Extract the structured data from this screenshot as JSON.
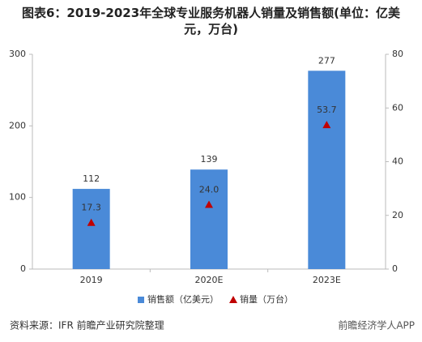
{
  "chart_data": {
    "type": "bar",
    "title": "图表6：2019-2023年全球专业服务机器人销量及销售额(单位：亿美元，万台)",
    "categories": [
      "2019",
      "2020E",
      "2023E"
    ],
    "series": [
      {
        "name": "销售额（亿美元）",
        "type": "bar",
        "color": "#4a8ad8",
        "values": [
          112,
          139,
          277
        ]
      },
      {
        "name": "销量（万台）",
        "type": "marker",
        "color": "#c00000",
        "axis": "y2",
        "values": [
          17.3,
          24.0,
          53.7
        ],
        "value_labels": [
          "17.3",
          "24.0",
          "53.7"
        ]
      }
    ],
    "ylim": [
      0,
      300
    ],
    "yticks": [
      0,
      100,
      200,
      300
    ],
    "y2lim": [
      0,
      80
    ],
    "y2ticks": [
      0,
      20,
      40,
      60,
      80
    ],
    "legend": "bottom",
    "source": "资料来源：IFR 前瞻产业研究院整理",
    "footer_mark": "前瞻经济学人APP"
  }
}
